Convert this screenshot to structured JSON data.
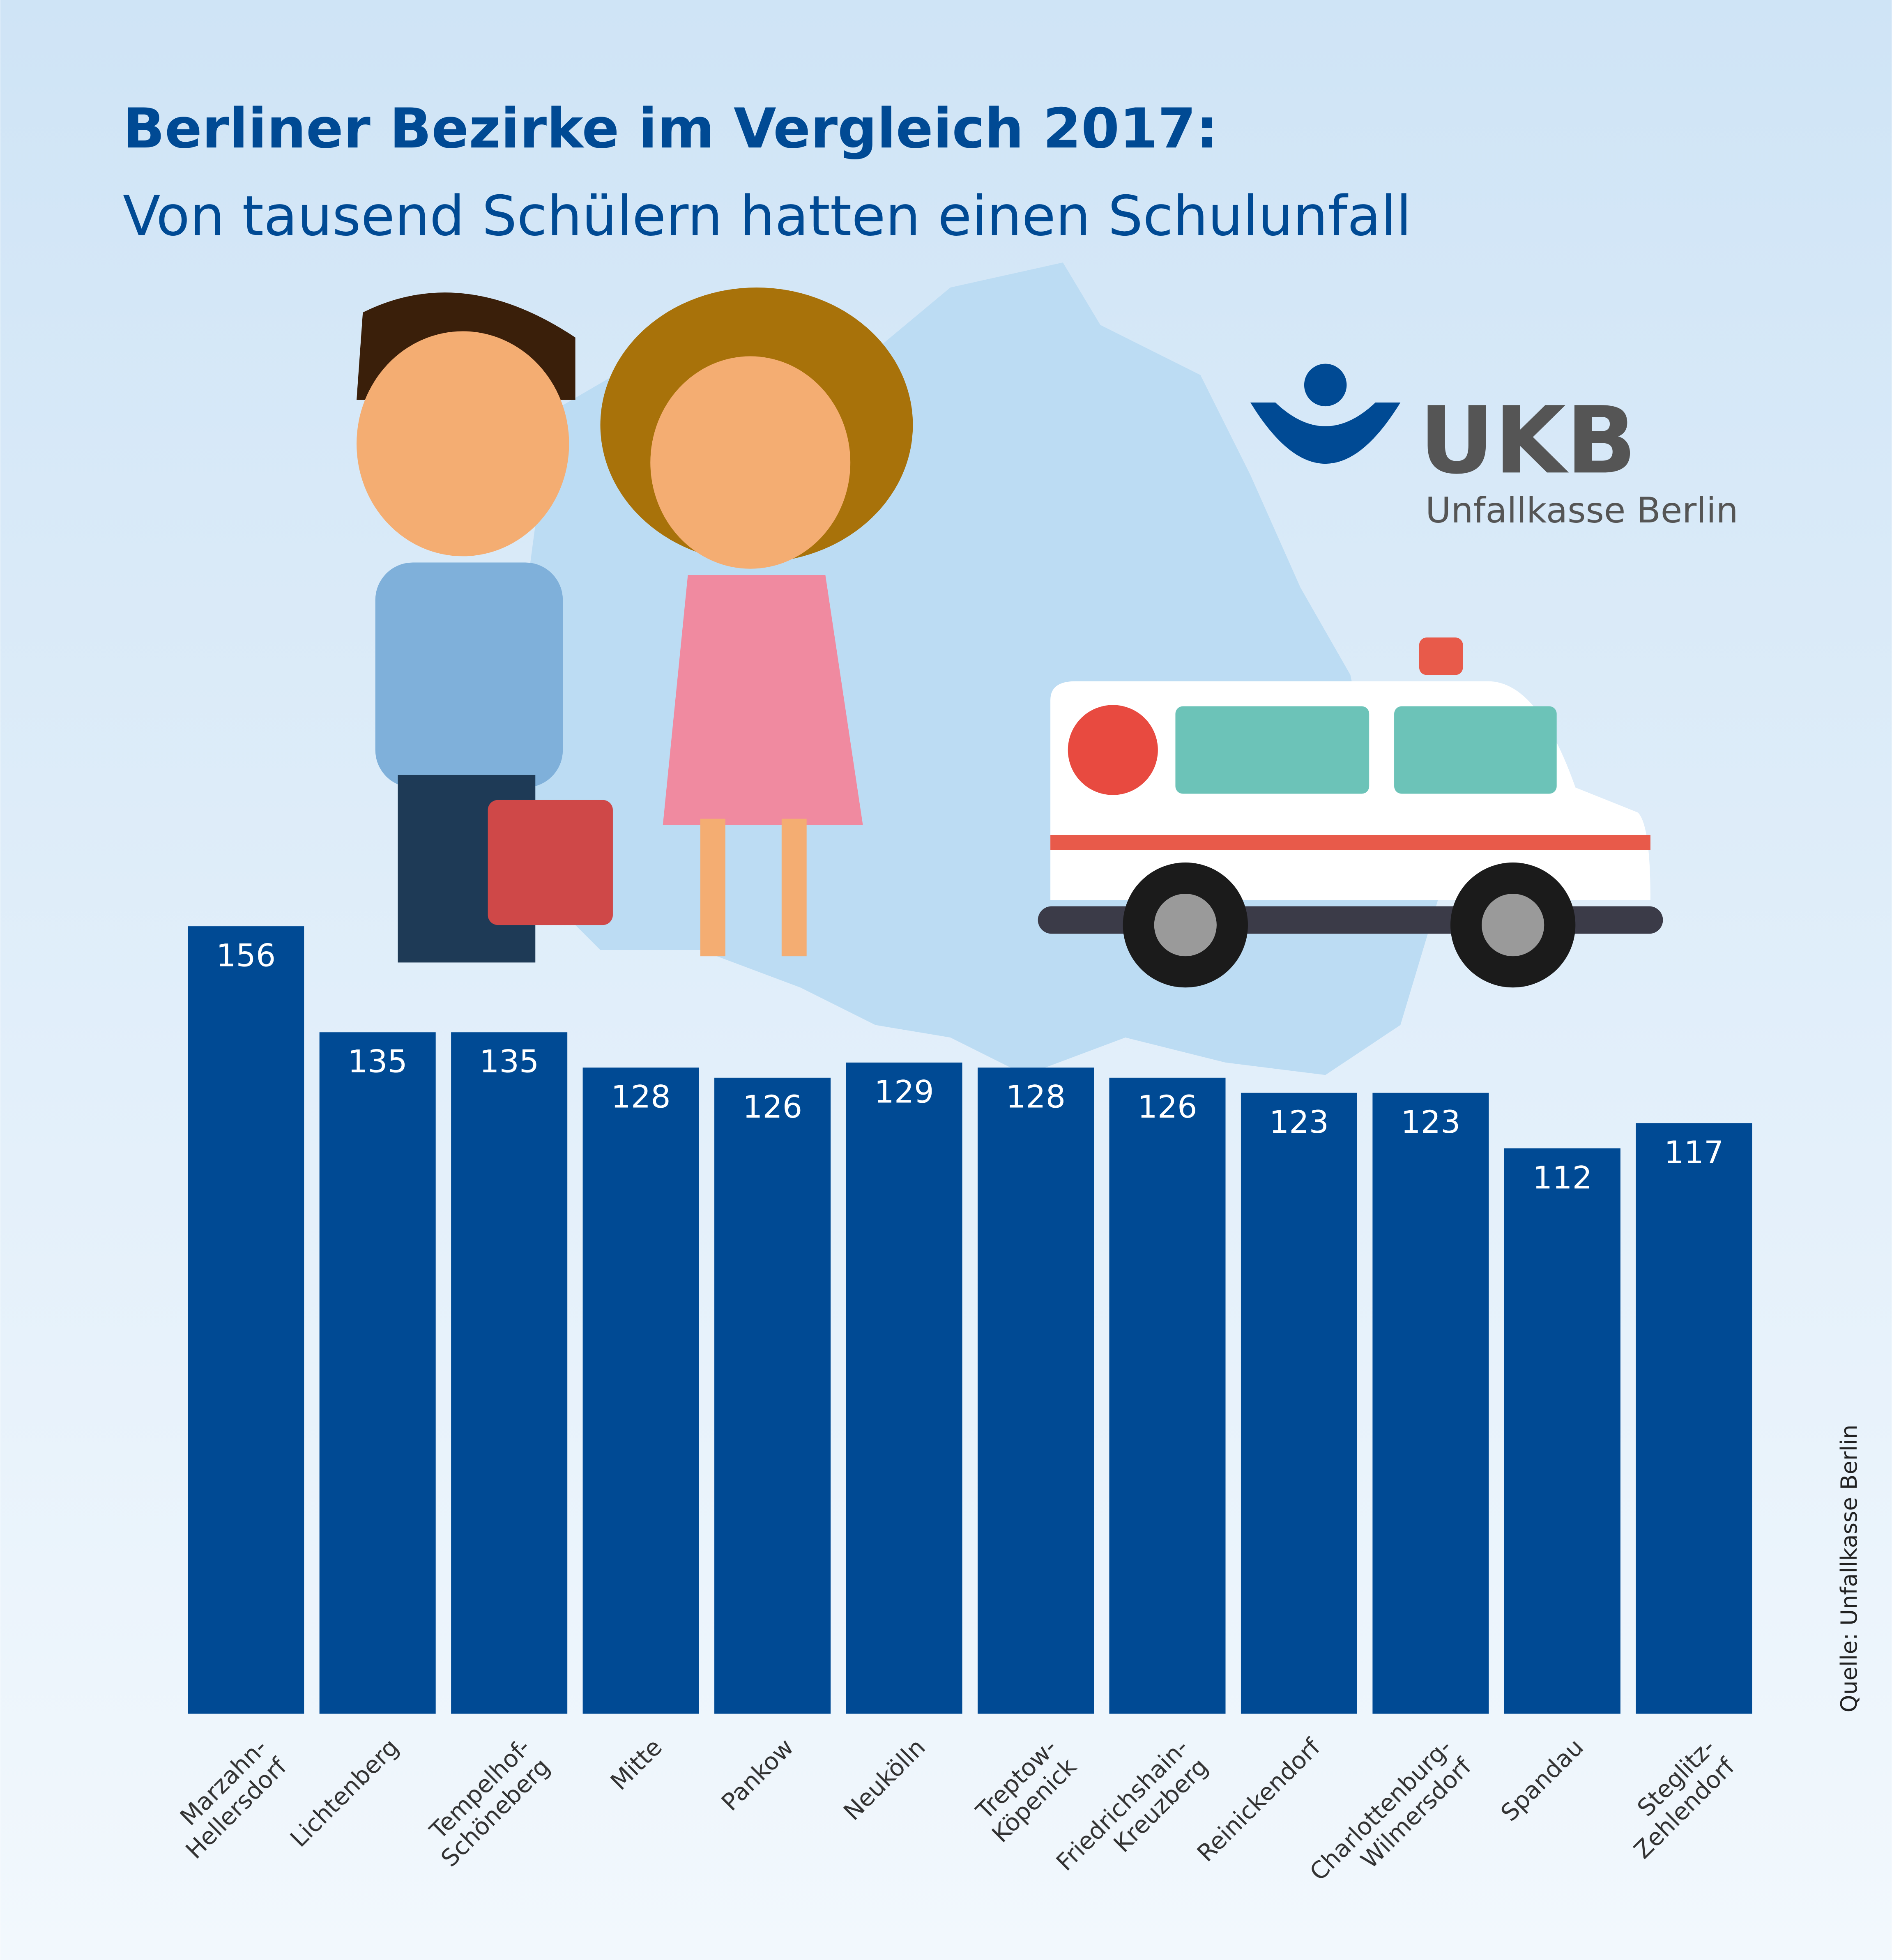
{
  "chart_data": {
    "type": "bar",
    "title": "Berliner Bezirke im Vergleich 2017:",
    "subtitle": "Von tausend Schülern hatten einen Schulunfall",
    "categories": [
      "Marzahn-\nHellersdorf",
      "Lichtenberg",
      "Tempelhof-\nSchöneberg",
      "Mitte",
      "Pankow",
      "Neukölln",
      "Treptow-\nKöpenick",
      "Friedrichshain-\nKreuzberg",
      "Reinickendorf",
      "Charlottenburg-\nWilmersdorf",
      "Spandau",
      "Steglitz-\nZehlendorf"
    ],
    "values": [
      156,
      135,
      135,
      128,
      126,
      129,
      128,
      126,
      123,
      123,
      112,
      117
    ],
    "color": "#004a94",
    "logo": {
      "mark": "UKB",
      "name": "Unfallkasse Berlin"
    },
    "source": "Quelle: Unfallkasse Berlin"
  }
}
